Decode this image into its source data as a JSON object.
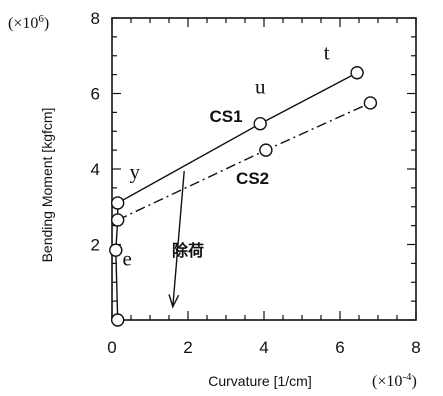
{
  "chart_data": {
    "type": "line",
    "xlabel": "Curvature  [1/cm]",
    "ylabel": "Bending Moment  [kgfcm]",
    "x_multiplier": "(×10",
    "x_multiplier_exp": "-4",
    "x_multiplier_close": ")",
    "y_multiplier": "(×10",
    "y_multiplier_exp": "6",
    "y_multiplier_close": ")",
    "xlim": [
      0,
      8
    ],
    "ylim": [
      0,
      8
    ],
    "xticks": [
      0,
      2,
      4,
      6,
      8
    ],
    "yticks": [
      2,
      4,
      6,
      8
    ],
    "grid": false,
    "series": [
      {
        "name": "CS1",
        "style": "solid",
        "points": [
          [
            0.15,
            3.1
          ],
          [
            3.9,
            5.2
          ],
          [
            6.45,
            6.55
          ]
        ]
      },
      {
        "name": "CS2",
        "style": "dash-dot",
        "points": [
          [
            0.15,
            2.65
          ],
          [
            4.05,
            4.5
          ],
          [
            6.8,
            5.75
          ]
        ]
      }
    ],
    "initial_segment": {
      "points": [
        [
          0.15,
          0
        ],
        [
          0.1,
          1.85
        ],
        [
          0.15,
          2.65
        ],
        [
          0.15,
          3.1
        ]
      ]
    },
    "annotations": [
      {
        "text": "t",
        "x": 5.65,
        "y": 6.9
      },
      {
        "text": "u",
        "x": 3.9,
        "y": 6.0
      },
      {
        "text": "y",
        "x": 0.6,
        "y": 3.75
      },
      {
        "text": "e",
        "x": 0.4,
        "y": 1.45
      },
      {
        "text": "除荷",
        "x": 2.0,
        "y": 1.7
      }
    ],
    "unload_arrow": {
      "from": [
        1.9,
        3.95
      ],
      "to": [
        1.6,
        0.35
      ]
    }
  }
}
